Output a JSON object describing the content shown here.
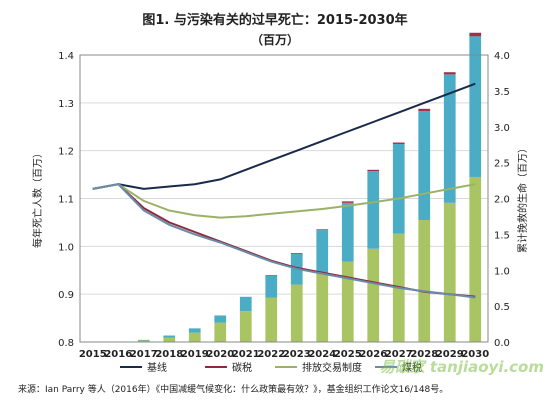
{
  "chart_data": {
    "type": "bar",
    "title": "图1. 与污染有关的过早死亡：2015-2030年",
    "subtitle": "（百万）",
    "ylabel_left": "每年死亡人数（百万）",
    "ylabel_right": "累计挽救的生命（百万）",
    "ylim_left": [
      0.8,
      1.4
    ],
    "yticks_left": [
      "0.8",
      "0.9",
      "1.0",
      "1.1",
      "1.2",
      "1.3",
      "1.4"
    ],
    "ylim_right": [
      0.0,
      4.0
    ],
    "yticks_right": [
      "0.0",
      "0.5",
      "1.0",
      "1.5",
      "2.0",
      "2.5",
      "3.0",
      "3.5",
      "4.0"
    ],
    "grid": true,
    "legend_position": "bottom",
    "categories": [
      "2015",
      "2016",
      "2017",
      "2018",
      "2019",
      "2020",
      "2021",
      "2022",
      "2023",
      "2024",
      "2025",
      "2026",
      "2027",
      "2028",
      "2029",
      "2030"
    ],
    "bar_series": [
      {
        "key": "emissions_trading",
        "color": "#a9c462",
        "values": [
          0,
          0,
          0.02,
          0.06,
          0.13,
          0.27,
          0.43,
          0.62,
          0.8,
          0.96,
          1.12,
          1.3,
          1.51,
          1.7,
          1.94,
          2.3
        ]
      },
      {
        "key": "coal_tax",
        "color": "#4bacc6",
        "values": [
          0,
          0,
          0.01,
          0.03,
          0.06,
          0.1,
          0.2,
          0.3,
          0.43,
          0.6,
          0.82,
          1.08,
          1.25,
          1.52,
          1.79,
          1.96
        ]
      },
      {
        "key": "carbon_tax",
        "color": "#a0304a",
        "values": [
          0,
          0,
          0,
          0,
          0,
          0,
          0,
          0.01,
          0.01,
          0.01,
          0.02,
          0.02,
          0.02,
          0.03,
          0.03,
          0.05
        ]
      }
    ],
    "line_series": [
      {
        "key": "baseline",
        "name": "基线",
        "color": "#1a2a4a",
        "values": [
          1.12,
          1.13,
          1.12,
          1.125,
          1.13,
          1.14,
          1.16,
          1.18,
          1.2,
          1.22,
          1.24,
          1.26,
          1.28,
          1.3,
          1.32,
          1.34
        ]
      },
      {
        "key": "carbon_tax",
        "name": "碳税",
        "color": "#8b2a3a",
        "values": [
          1.12,
          1.13,
          1.08,
          1.05,
          1.03,
          1.01,
          0.99,
          0.97,
          0.955,
          0.945,
          0.935,
          0.925,
          0.915,
          0.905,
          0.9,
          0.895
        ]
      },
      {
        "key": "emissions_trading",
        "name": "排放交易制度",
        "color": "#9bb266",
        "values": [
          1.12,
          1.13,
          1.095,
          1.075,
          1.065,
          1.06,
          1.063,
          1.068,
          1.073,
          1.078,
          1.085,
          1.092,
          1.1,
          1.11,
          1.12,
          1.13
        ]
      },
      {
        "key": "coal_tax",
        "name": "煤税",
        "color": "#6a8aa8",
        "values": [
          1.12,
          1.13,
          1.075,
          1.045,
          1.025,
          1.008,
          0.988,
          0.968,
          0.953,
          0.943,
          0.933,
          0.923,
          0.913,
          0.906,
          0.9,
          0.893
        ]
      }
    ],
    "legend": [
      {
        "key": "baseline",
        "label": "基线"
      },
      {
        "key": "carbon_tax",
        "label": "碳税"
      },
      {
        "key": "emissions_trading",
        "label": "排放交易制度"
      },
      {
        "key": "coal_tax",
        "label": "煤税"
      }
    ]
  },
  "source_note": "来源：Ian Parry 等人（2016年）《中国减缓气候变化：什么政策最有效？》，基金组织工作论文16/148号。",
  "watermark_text": "易碳家 tanjiaoyi.com",
  "colors": {
    "background": "#ffffff",
    "grid": "#d9d9d9",
    "axis": "#888888"
  }
}
